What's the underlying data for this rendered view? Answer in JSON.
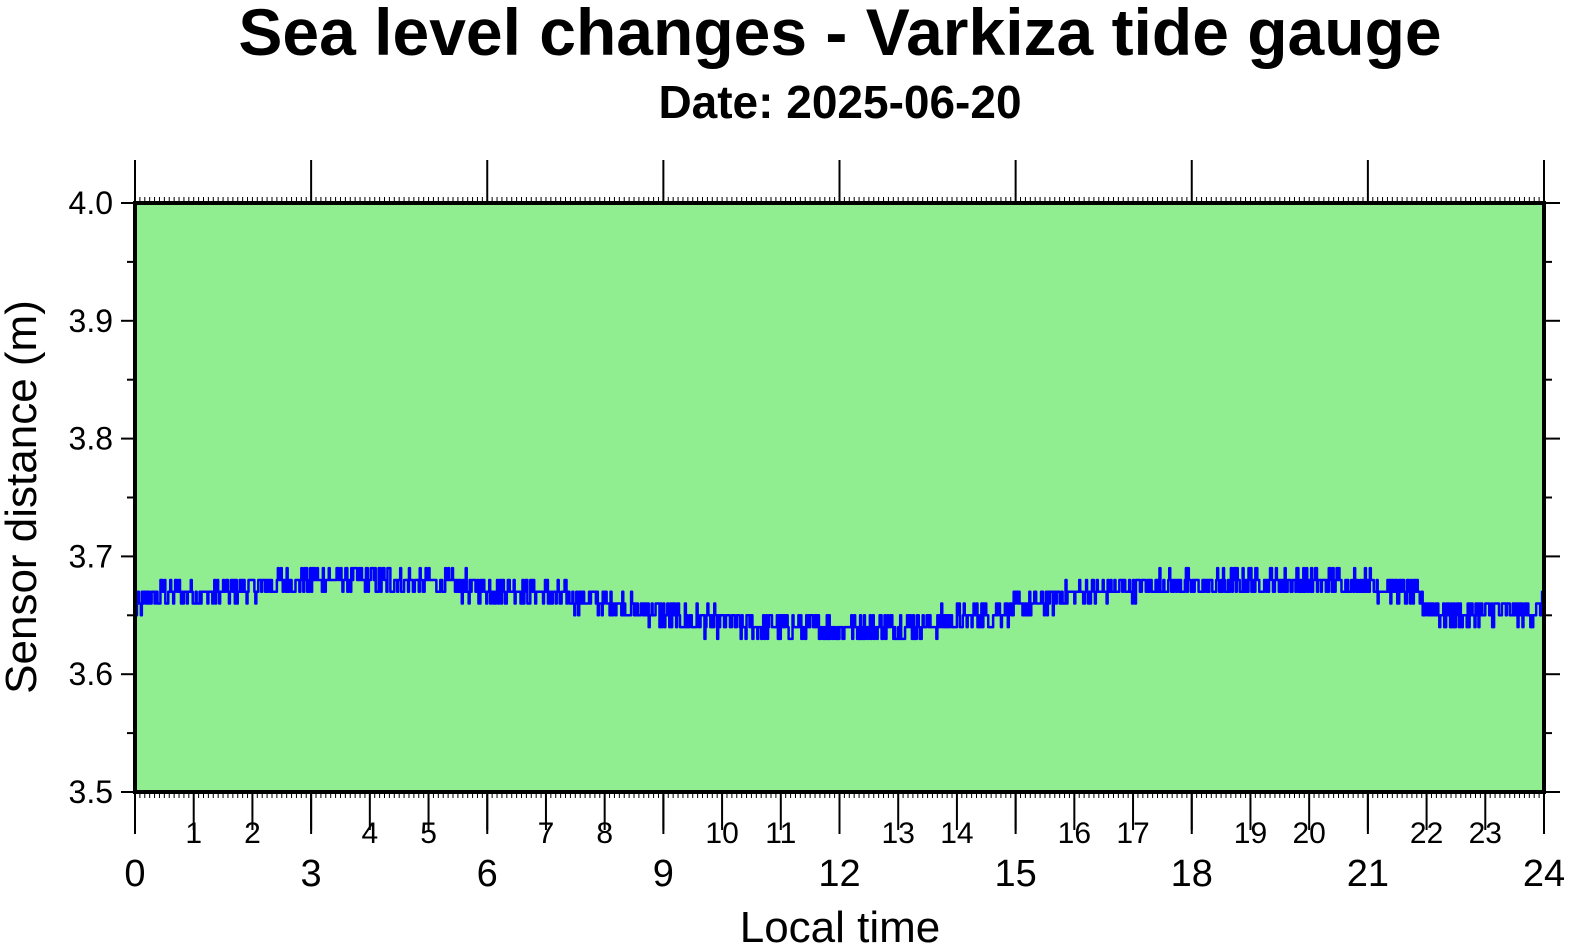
{
  "title": "Sea level changes - Varkiza tide gauge",
  "subtitle": "Date: 2025-06-20",
  "colors": {
    "plot_bg": "#90ee90",
    "line": "#0000ff",
    "frame": "#000000"
  },
  "chart_data": {
    "type": "line",
    "title": "Sea level changes - Varkiza tide gauge",
    "subtitle": "Date: 2025-06-20",
    "xlabel": "Local time",
    "ylabel": "Sensor distance (m)",
    "xlim": [
      0,
      24
    ],
    "ylim": [
      3.5,
      4.0
    ],
    "x_major_ticks": [
      "0",
      "3",
      "6",
      "9",
      "12",
      "15",
      "18",
      "21",
      "24"
    ],
    "x_minor_ticks": [
      "1",
      "2",
      "4",
      "5",
      "7",
      "8",
      "10",
      "11",
      "13",
      "14",
      "16",
      "17",
      "19",
      "20",
      "22",
      "23"
    ],
    "y_ticks": [
      "3.5",
      "3.6",
      "3.7",
      "3.8",
      "3.9",
      "4.0"
    ],
    "grid": false,
    "series": [
      {
        "x": [
          0,
          0.25,
          0.5,
          0.75,
          1,
          1.25,
          1.5,
          1.75,
          2,
          2.25,
          2.5,
          2.75,
          3,
          3.25,
          3.5,
          3.75,
          4,
          4.25,
          4.5,
          4.75,
          5,
          5.25,
          5.5,
          5.75,
          6,
          6.25,
          6.5,
          6.75,
          7,
          7.25,
          7.5,
          7.75,
          8,
          8.25,
          8.5,
          8.75,
          9,
          9.25,
          9.5,
          9.75,
          10,
          10.25,
          10.5,
          10.75,
          11,
          11.25,
          11.5,
          11.75,
          12,
          12.25,
          12.5,
          12.75,
          13,
          13.25,
          13.5,
          13.75,
          14,
          14.25,
          14.5,
          14.75,
          15,
          15.25,
          15.5,
          15.75,
          16,
          16.25,
          16.5,
          16.75,
          17,
          17.25,
          17.5,
          17.75,
          18,
          18.25,
          18.5,
          18.75,
          19,
          19.25,
          19.5,
          19.75,
          20,
          20.25,
          20.5,
          20.75,
          21,
          21.25,
          21.5,
          21.75,
          22,
          22.25,
          22.5,
          22.75,
          23,
          23.25,
          23.5,
          23.75,
          24
        ],
        "y": [
          3.655,
          3.665,
          3.668,
          3.67,
          3.668,
          3.666,
          3.67,
          3.673,
          3.673,
          3.676,
          3.678,
          3.679,
          3.68,
          3.681,
          3.681,
          3.681,
          3.68,
          3.68,
          3.679,
          3.678,
          3.677,
          3.676,
          3.675,
          3.674,
          3.673,
          3.672,
          3.671,
          3.67,
          3.668,
          3.666,
          3.664,
          3.662,
          3.66,
          3.658,
          3.656,
          3.654,
          3.651,
          3.648,
          3.646,
          3.645,
          3.644,
          3.642,
          3.641,
          3.64,
          3.64,
          3.64,
          3.64,
          3.639,
          3.64,
          3.64,
          3.64,
          3.641,
          3.641,
          3.642,
          3.643,
          3.645,
          3.646,
          3.648,
          3.651,
          3.654,
          3.656,
          3.659,
          3.662,
          3.665,
          3.667,
          3.669,
          3.671,
          3.673,
          3.674,
          3.675,
          3.676,
          3.676,
          3.675,
          3.675,
          3.676,
          3.677,
          3.678,
          3.679,
          3.679,
          3.679,
          3.679,
          3.679,
          3.678,
          3.677,
          3.676,
          3.674,
          3.672,
          3.668,
          3.66,
          3.652,
          3.65,
          3.65,
          3.652,
          3.653,
          3.652,
          3.652,
          3.655
        ]
      }
    ]
  }
}
